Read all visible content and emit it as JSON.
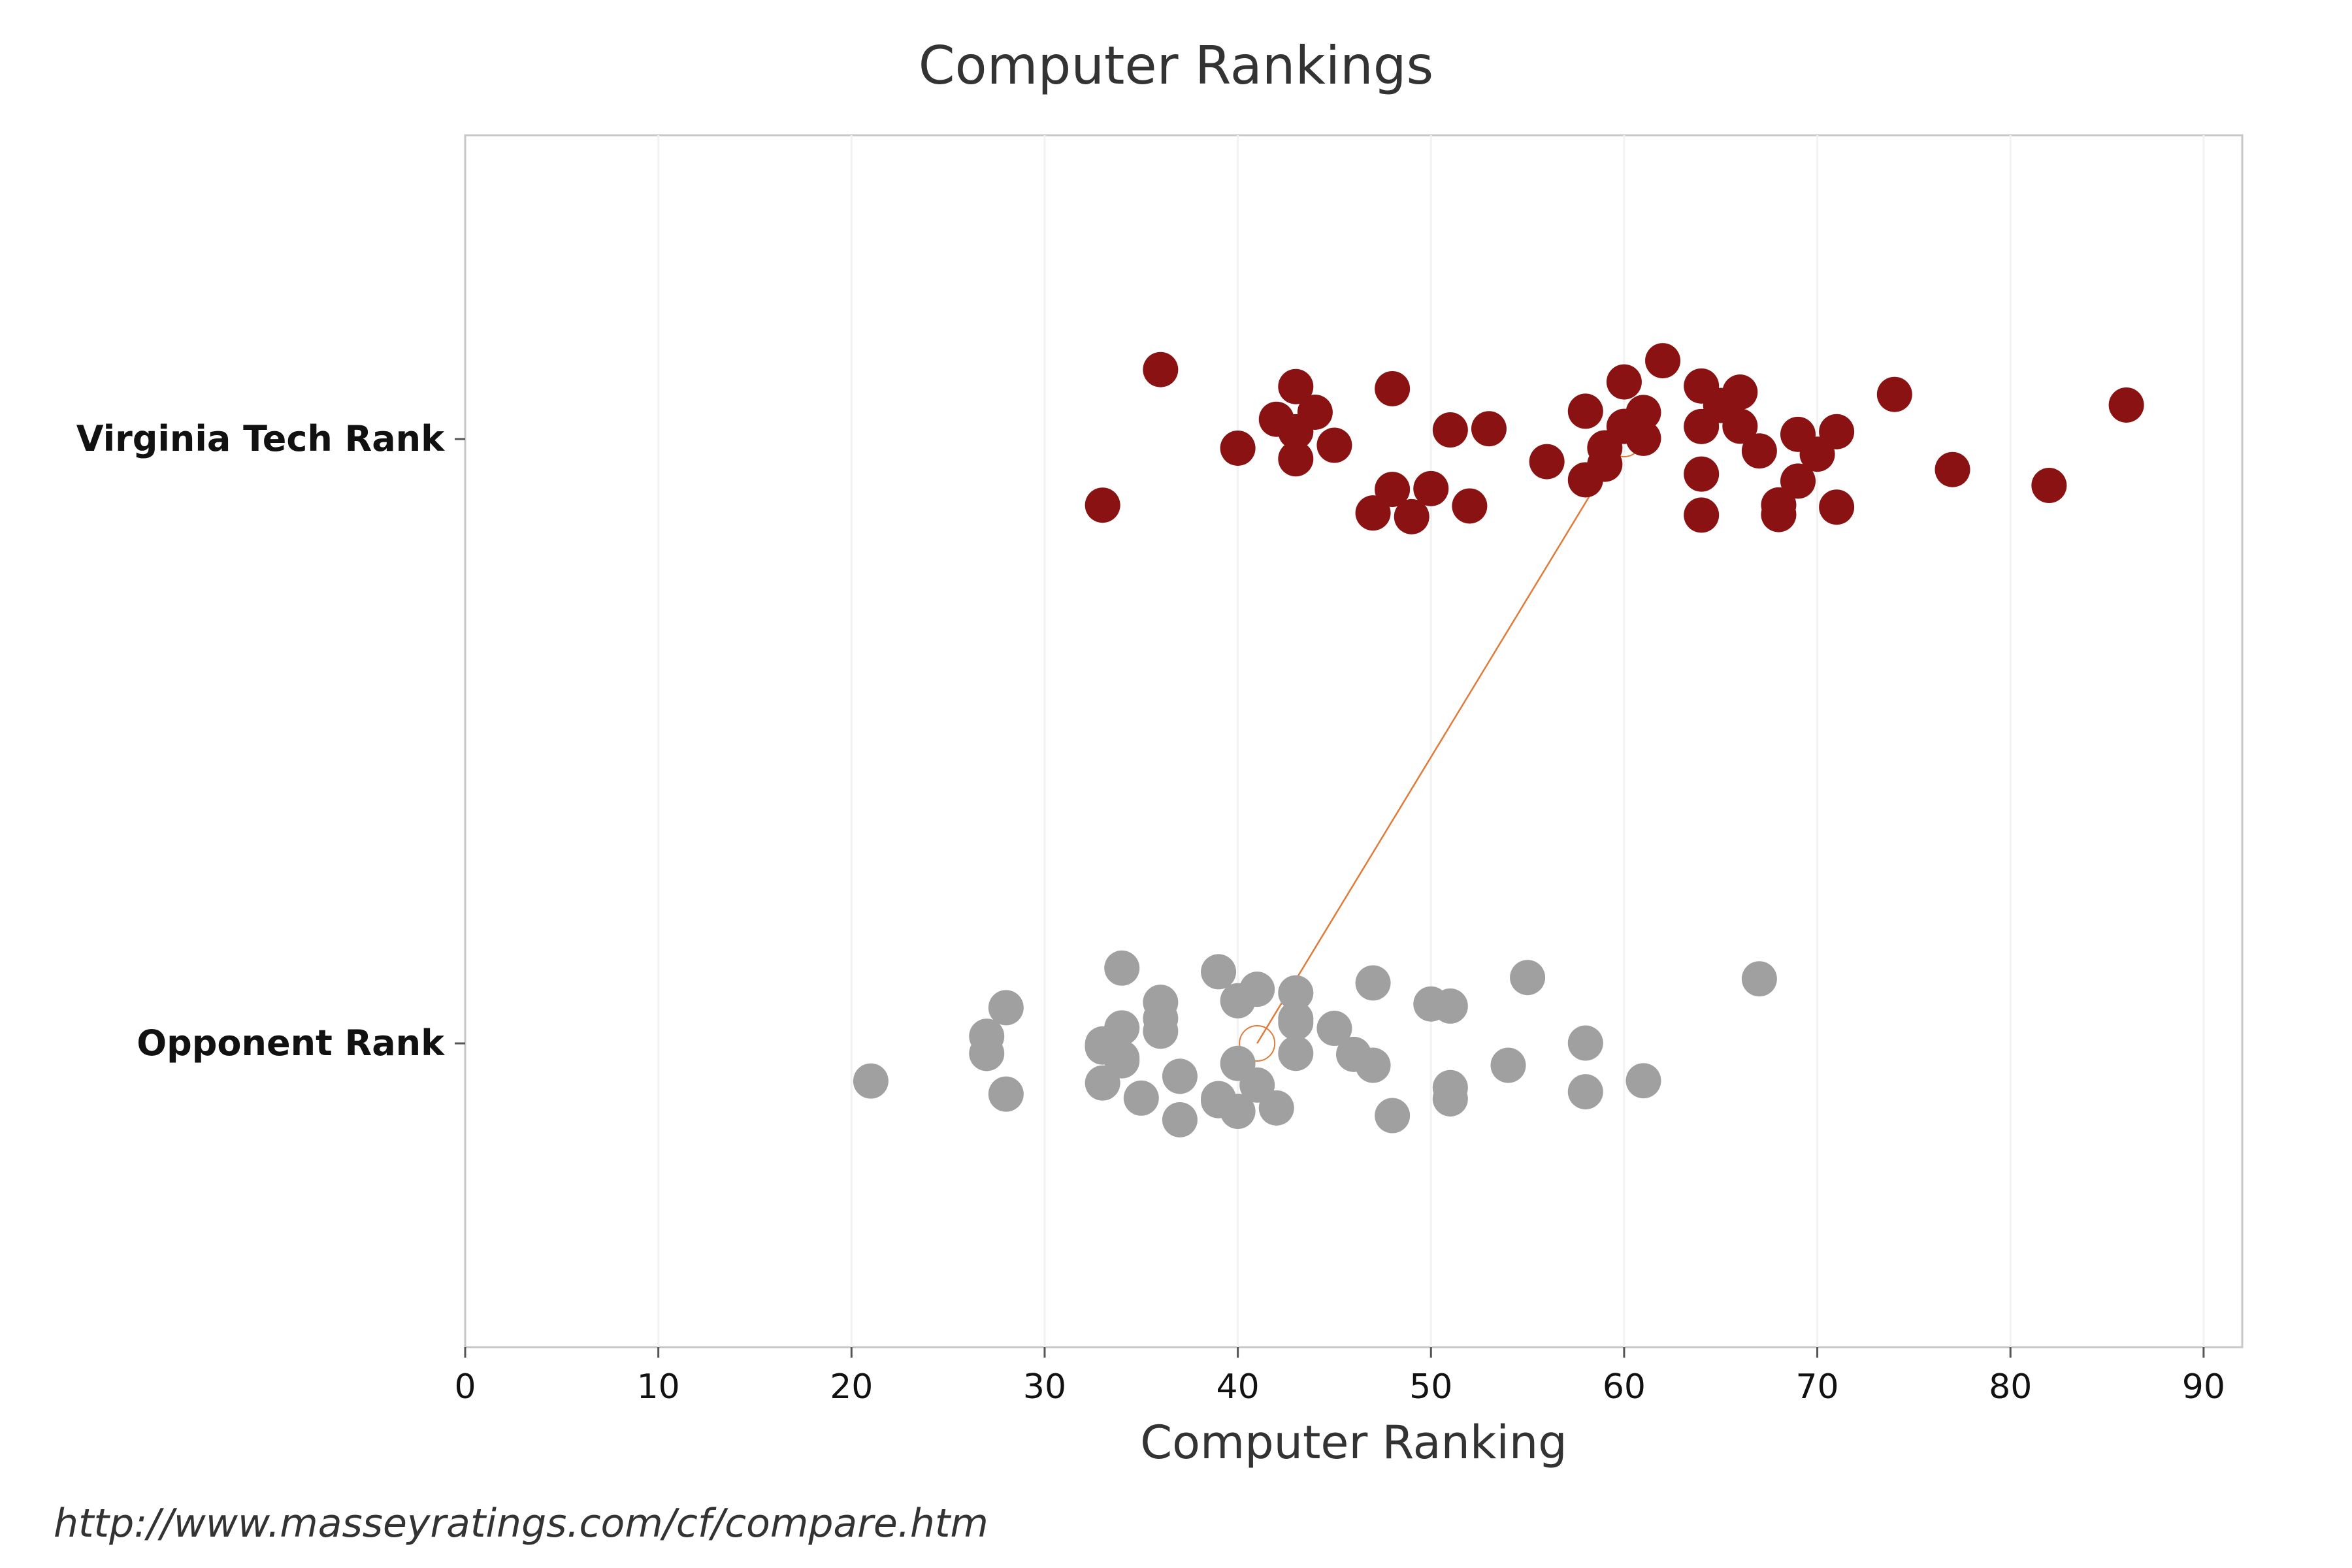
{
  "chart_data": {
    "type": "scatter",
    "title": "Computer Rankings",
    "xlabel": "Computer Ranking",
    "ylabel": "",
    "xlim": [
      0,
      92
    ],
    "xticks": [
      0,
      10,
      20,
      30,
      40,
      50,
      60,
      70,
      80,
      90
    ],
    "categories": [
      "Virginia Tech Rank",
      "Opponent Rank"
    ],
    "grid": true,
    "legend": "none",
    "series": [
      {
        "category": "Virginia Tech Rank",
        "color": "#8b1212",
        "values": [
          33,
          36,
          40,
          42,
          43,
          43,
          43,
          44,
          45,
          47,
          48,
          48,
          49,
          50,
          51,
          52,
          53,
          56,
          58,
          58,
          59,
          59,
          60,
          60,
          61,
          61,
          62,
          64,
          64,
          64,
          64,
          65,
          66,
          66,
          67,
          68,
          68,
          69,
          69,
          70,
          71,
          71,
          74,
          77,
          82,
          86
        ]
      },
      {
        "category": "Opponent Rank",
        "color": "#a0a0a0",
        "values": [
          21,
          27,
          27,
          28,
          28,
          33,
          33,
          33,
          33,
          34,
          34,
          34,
          34,
          35,
          36,
          36,
          36,
          37,
          37,
          39,
          39,
          39,
          40,
          40,
          40,
          41,
          41,
          42,
          43,
          43,
          43,
          43,
          45,
          46,
          47,
          47,
          48,
          50,
          51,
          51,
          51,
          54,
          55,
          58,
          58,
          61,
          67
        ]
      }
    ],
    "connector": {
      "from": [
        60,
        "Virginia Tech Rank"
      ],
      "to": [
        41,
        "Opponent Rank"
      ],
      "color": "#e07b39"
    },
    "source": "http://www.masseyratings.com/cf/compare.htm"
  }
}
